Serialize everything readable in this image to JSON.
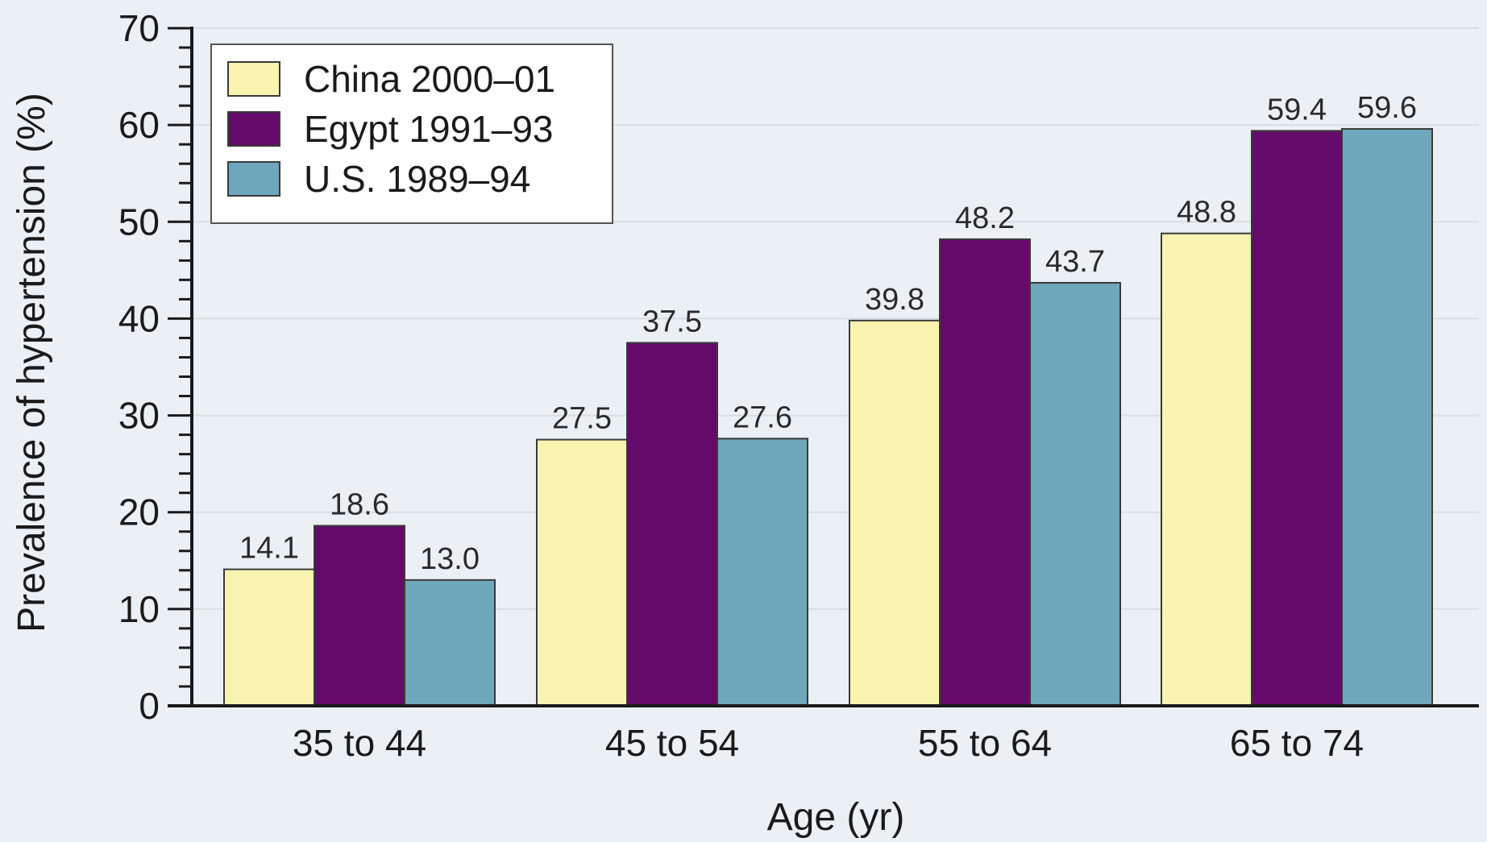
{
  "chart_data": {
    "type": "bar",
    "title": "",
    "xlabel": "Age (yr)",
    "ylabel": "Prevalence of hypertension (%)",
    "ylim": [
      0,
      70
    ],
    "yticks": [
      "0",
      "10",
      "20",
      "30",
      "40",
      "50",
      "60",
      "70"
    ],
    "categories": [
      "35 to 44",
      "45 to 54",
      "55 to 64",
      "65 to 74"
    ],
    "grid": true,
    "legend_position": "top-left",
    "series": [
      {
        "name": "China 2000–01",
        "color": "#f8f4b0",
        "values": [
          14.1,
          27.5,
          39.8,
          48.8
        ],
        "labels": [
          "14.1",
          "27.5",
          "39.8",
          "48.8"
        ]
      },
      {
        "name": "Egypt 1991–93",
        "color": "#630a6a",
        "values": [
          18.6,
          37.5,
          48.2,
          59.4
        ],
        "labels": [
          "18.6",
          "37.5",
          "48.2",
          "59.4"
        ]
      },
      {
        "name": "U.S. 1989–94",
        "color": "#6fa7bc",
        "values": [
          13.0,
          27.6,
          43.7,
          59.6
        ],
        "labels": [
          "13.0",
          "27.6",
          "43.7",
          "59.6"
        ]
      }
    ]
  }
}
